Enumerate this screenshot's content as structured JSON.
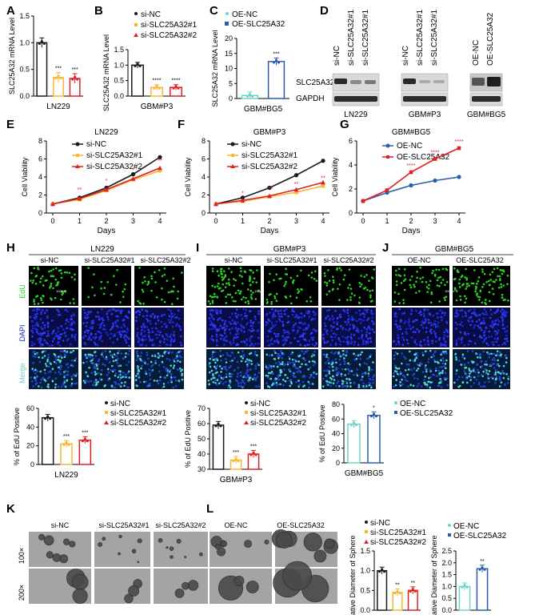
{
  "colors": {
    "black": "#1a1a1a",
    "orange": "#f7b731",
    "red": "#e02020",
    "teal": "#6fd4c8",
    "blue": "#2a5db0",
    "edu": "#2bd12b",
    "dapi": "#1b27c8"
  },
  "panels": {
    "A": "A",
    "B": "B",
    "C": "C",
    "D": "D",
    "E": "E",
    "F": "F",
    "G": "G",
    "H": "H",
    "I": "I",
    "J": "J",
    "K": "K",
    "L": "L"
  },
  "legends": {
    "si": [
      "si-NC",
      "si-SLC25A32#1",
      "si-SLC25A32#2"
    ],
    "oe": [
      "OE-NC",
      "OE-SLC25A32"
    ]
  },
  "blot": {
    "target": "SLC25A32",
    "control": "GAPDH",
    "cell_labels": [
      "LN229",
      "GBM#P3",
      "GBM#BG5"
    ],
    "lanes_si": [
      "si-NC",
      "si-SLC25A32#1",
      "si-SLC25A32#1"
    ],
    "lanes_si2": [
      "si-NC",
      "si-SLC25A32#1",
      "si-SLC25A32#1"
    ],
    "lanes_oe": [
      "OE-NC",
      "OE-SLC25A32"
    ]
  },
  "micro": {
    "H_title": "LN229",
    "I_title": "GBM#P3",
    "J_title": "GBM#BG5",
    "H_cols": [
      "si-NC",
      "si-SLC25A32#1",
      "si-SLC25A32#2"
    ],
    "I_cols": [
      "si-NC",
      "si-SLC25A32#1",
      "si-SLC25A32#2"
    ],
    "J_cols": [
      "OE-NC",
      "OE-SLC25A32"
    ],
    "rows": [
      "EdU",
      "DAPI",
      "Merge"
    ],
    "scale": "100μm",
    "K_cols": [
      "si-NC",
      "si-SLC25A32#1",
      "si-SLC25A32#2"
    ],
    "L_cols": [
      "OE-NC",
      "OE-SLC25A32"
    ],
    "mag": [
      "100×",
      "200×"
    ]
  },
  "chart_data": [
    {
      "panel": "A",
      "type": "bar",
      "title": "",
      "xlabel": "LN229",
      "ylabel": "SLC25A32 mRNA Level",
      "ylim": [
        0,
        1.5
      ],
      "yticks": [
        "0.0",
        "0.5",
        "1.0",
        "1.5"
      ],
      "categories": [
        "si-NC",
        "si-SLC25A32#1",
        "si-SLC25A32#2"
      ],
      "values": [
        1.0,
        0.35,
        0.33
      ],
      "sig": [
        "",
        "***",
        "***"
      ]
    },
    {
      "panel": "B",
      "type": "bar",
      "xlabel": "GBM#P3",
      "ylabel": "SLC25A32 mRNA Level",
      "ylim": [
        0,
        1.5
      ],
      "yticks": [
        "0.0",
        "0.5",
        "1.0",
        "1.5"
      ],
      "categories": [
        "si-NC",
        "si-SLC25A32#1",
        "si-SLC25A32#2"
      ],
      "values": [
        1.0,
        0.28,
        0.28
      ],
      "sig": [
        "",
        "****",
        "****"
      ]
    },
    {
      "panel": "C",
      "type": "bar",
      "xlabel": "GBM#BG5",
      "ylabel": "SLC25A32 mRNA Level",
      "ylim": [
        0,
        20
      ],
      "yticks": [
        "0",
        "5",
        "10",
        "15",
        "20"
      ],
      "categories": [
        "OE-NC",
        "OE-SLC25A32"
      ],
      "values": [
        1.0,
        12.3
      ],
      "sig": [
        "",
        "***"
      ]
    },
    {
      "panel": "E",
      "type": "line",
      "title": "LN229",
      "xlabel": "Days",
      "ylabel": "Cell Viability",
      "x": [
        0,
        1,
        2,
        3,
        4
      ],
      "ylim": [
        0,
        8
      ],
      "yticks": [
        "0",
        "2",
        "4",
        "6",
        "8"
      ],
      "series": [
        {
          "name": "si-NC",
          "values": [
            1.0,
            1.7,
            2.8,
            4.3,
            6.2
          ]
        },
        {
          "name": "si-SLC25A32#1",
          "values": [
            1.0,
            1.5,
            2.5,
            3.7,
            4.7
          ]
        },
        {
          "name": "si-SLC25A32#2",
          "values": [
            1.0,
            1.6,
            2.6,
            3.8,
            5.0
          ]
        }
      ],
      "sig": [
        "",
        "**",
        "*",
        "*",
        "**"
      ]
    },
    {
      "panel": "F",
      "type": "line",
      "title": "GBM#P3",
      "xlabel": "Days",
      "ylabel": "Cell Viability",
      "x": [
        0,
        1,
        2,
        3,
        4
      ],
      "ylim": [
        0,
        8
      ],
      "yticks": [
        "0",
        "2",
        "4",
        "6",
        "8"
      ],
      "series": [
        {
          "name": "si-NC",
          "values": [
            1.0,
            1.7,
            2.8,
            4.2,
            5.8
          ]
        },
        {
          "name": "si-SLC25A32#1",
          "values": [
            1.0,
            1.3,
            1.8,
            2.3,
            3.0
          ]
        },
        {
          "name": "si-SLC25A32#2",
          "values": [
            1.0,
            1.4,
            1.9,
            2.6,
            3.4
          ]
        }
      ],
      "sig": [
        "",
        "*",
        "***",
        "**",
        "**"
      ]
    },
    {
      "panel": "G",
      "type": "line",
      "title": "GBM#BG5",
      "xlabel": "Days",
      "ylabel": "Cell Viability",
      "x": [
        0,
        1,
        2,
        3,
        4
      ],
      "ylim": [
        0,
        6
      ],
      "yticks": [
        "0",
        "2",
        "4",
        "6"
      ],
      "series": [
        {
          "name": "OE-NC",
          "values": [
            1.0,
            1.7,
            2.3,
            2.7,
            3.0
          ]
        },
        {
          "name": "OE-SLC25A32",
          "values": [
            1.0,
            1.9,
            3.4,
            4.5,
            5.4
          ]
        }
      ],
      "sig": [
        "",
        "",
        "****",
        "****",
        "****"
      ]
    },
    {
      "panel": "H2",
      "type": "bar",
      "xlabel": "LN229",
      "ylabel": "% of EdU Positive",
      "ylim": [
        0,
        60
      ],
      "yticks": [
        "0",
        "20",
        "40",
        "60"
      ],
      "categories": [
        "si-NC",
        "si-SLC25A32#1",
        "si-SLC25A32#2"
      ],
      "values": [
        50,
        22,
        26
      ],
      "sig": [
        "",
        "***",
        "***"
      ]
    },
    {
      "panel": "I2",
      "type": "bar",
      "xlabel": "GBM#P3",
      "ylabel": "% of EdU Positive",
      "ylim": [
        30,
        70
      ],
      "yticks": [
        "30",
        "40",
        "50",
        "60",
        "70"
      ],
      "categories": [
        "si-NC",
        "si-SLC25A32#1",
        "si-SLC25A32#2"
      ],
      "values": [
        59,
        36,
        40
      ],
      "sig": [
        "",
        "***",
        "***"
      ]
    },
    {
      "panel": "J2",
      "type": "bar",
      "xlabel": "GBM#BG5",
      "ylabel": "% of EdU Positive",
      "ylim": [
        0,
        80
      ],
      "yticks": [
        "0",
        "20",
        "40",
        "60",
        "80"
      ],
      "categories": [
        "OE-NC",
        "OE-SLC25A32"
      ],
      "values": [
        53,
        65
      ],
      "sig": [
        "",
        "*"
      ]
    },
    {
      "panel": "K2",
      "type": "bar",
      "xlabel": "",
      "ylabel": "Relative Diameter of Sphere",
      "ylim": [
        0,
        1.5
      ],
      "yticks": [
        "0.0",
        "0.5",
        "1.0",
        "1.5"
      ],
      "categories": [
        "si-NC",
        "si-SLC25A32#1",
        "si-SLC25A32#2"
      ],
      "values": [
        1.0,
        0.45,
        0.5
      ],
      "sig": [
        "",
        "**",
        "**"
      ]
    },
    {
      "panel": "L2",
      "type": "bar",
      "xlabel": "",
      "ylabel": "Relative Diameter of Sphere",
      "ylim": [
        0,
        2.5
      ],
      "yticks": [
        "0.0",
        "0.5",
        "1.0",
        "1.5",
        "2.0",
        "2.5"
      ],
      "categories": [
        "OE-NC",
        "OE-SLC25A32"
      ],
      "values": [
        1.0,
        1.75
      ],
      "sig": [
        "",
        "**"
      ]
    }
  ]
}
